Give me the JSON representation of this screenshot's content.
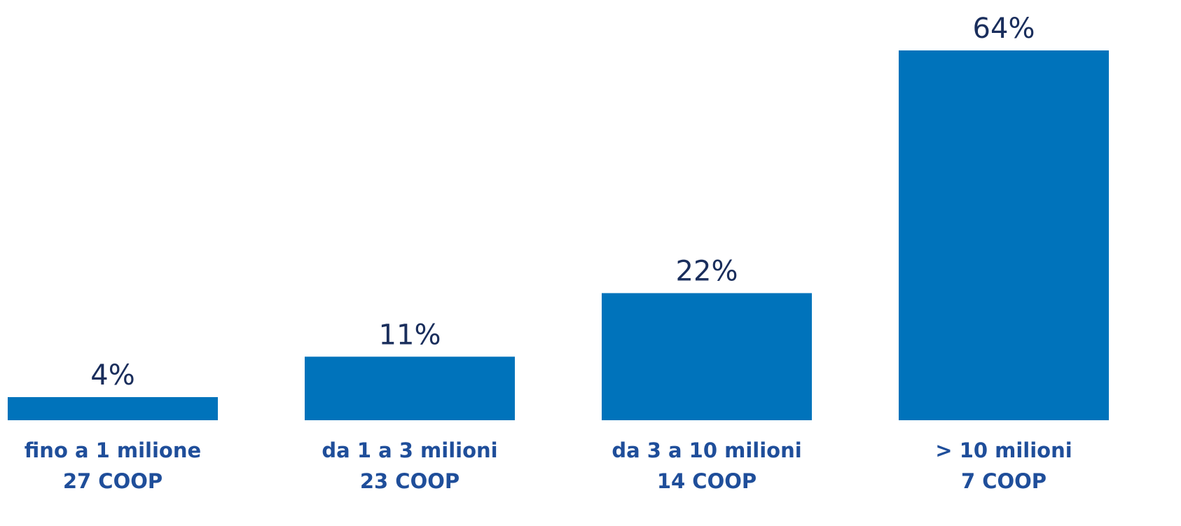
{
  "colors": {
    "bar": "#0073bb",
    "value_text": "#1a2e5c",
    "category_text": "#1f4e9a",
    "background": "#ffffff"
  },
  "chart_data": {
    "type": "bar",
    "categories": [
      "fino a 1 milione",
      "da 1 a 3 milioni",
      "da 3 a 10 milioni",
      "> 10 milioni"
    ],
    "category_counts": [
      "27 COOP",
      "23 COOP",
      "14 COOP",
      "7 COOP"
    ],
    "values": [
      4,
      11,
      22,
      64
    ],
    "value_labels": [
      "4%",
      "11%",
      "22%",
      "64%"
    ],
    "unit": "%",
    "title": "",
    "xlabel": "",
    "ylabel": "",
    "ylim": [
      0,
      64
    ],
    "grid": false,
    "legend": "none"
  }
}
